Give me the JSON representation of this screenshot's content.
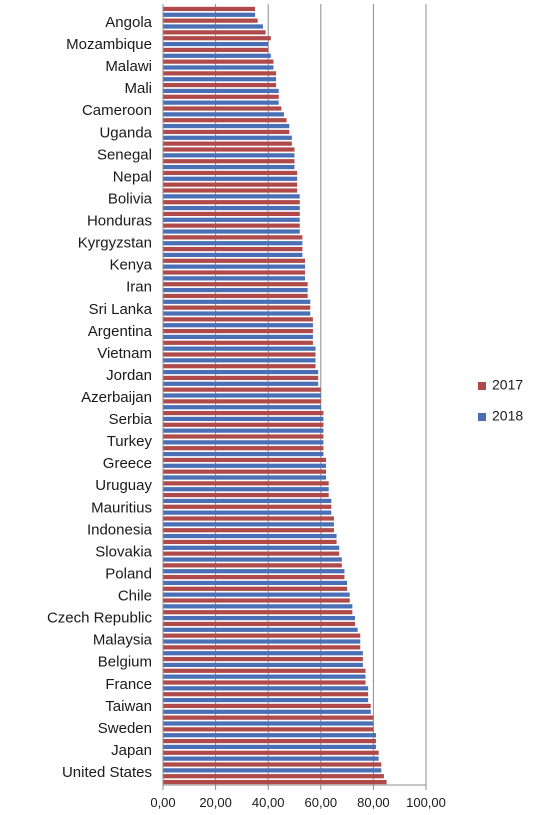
{
  "chart_data": {
    "type": "bar",
    "orientation": "horizontal",
    "xlim": [
      0,
      100
    ],
    "x_ticks": [
      "0,00",
      "20,00",
      "40,00",
      "60,00",
      "80,00",
      "100,00"
    ],
    "grid": true,
    "legend_position": "right",
    "series": [
      {
        "name": "2017",
        "color": "#b04a4a"
      },
      {
        "name": "2018",
        "color": "#4a6fb5"
      }
    ],
    "labeled_categories": [
      "Angola",
      "Mozambique",
      "Malawi",
      "Mali",
      "Cameroon",
      "Uganda",
      "Senegal",
      "Nepal",
      "Bolivia",
      "Honduras",
      "Kyrgyzstan",
      "Kenya",
      "Iran",
      "Sri Lanka",
      "Argentina",
      "Vietnam",
      "Jordan",
      "Azerbaijan",
      "Serbia",
      "Turkey",
      "Greece",
      "Uruguay",
      "Mauritius",
      "Indonesia",
      "Slovakia",
      "Poland",
      "Chile",
      "Czech Republic",
      "Malaysia",
      "Belgium",
      "France",
      "Taiwan",
      "Sweden",
      "Japan",
      "United States"
    ],
    "values": [
      35,
      35,
      36,
      38,
      39,
      41,
      40,
      40,
      41,
      42,
      42,
      43,
      43,
      43,
      44,
      44,
      44,
      45,
      46,
      47,
      48,
      48,
      49,
      49,
      50,
      50,
      50,
      50,
      51,
      51,
      51,
      51,
      52,
      52,
      52,
      52,
      52,
      52,
      52,
      53,
      53,
      53,
      53,
      54,
      54,
      54,
      54,
      55,
      55,
      55,
      56,
      56,
      56,
      57,
      57,
      57,
      57,
      57,
      58,
      58,
      58,
      58,
      59,
      59,
      59,
      60,
      60,
      60,
      60,
      61,
      61,
      61,
      61,
      61,
      61,
      61,
      61,
      62,
      62,
      62,
      62,
      63,
      63,
      63,
      64,
      64,
      64,
      65,
      65,
      65,
      66,
      66,
      67,
      67,
      68,
      68,
      69,
      69,
      70,
      70,
      71,
      71,
      72,
      72,
      73,
      73,
      74,
      75,
      75,
      75,
      76,
      76,
      76,
      77,
      77,
      77,
      78,
      78,
      78,
      79,
      79,
      80,
      80,
      80,
      81,
      81,
      81,
      82,
      82,
      83,
      83,
      84,
      85
    ],
    "series_index": [
      0,
      1,
      0,
      1,
      0,
      0,
      1,
      0,
      1,
      0,
      1,
      0,
      1,
      0,
      1,
      0,
      1,
      0,
      1,
      0,
      1,
      0,
      1,
      0,
      0,
      1,
      0,
      1,
      0,
      1,
      0,
      0,
      1,
      0,
      1,
      0,
      1,
      0,
      1,
      0,
      1,
      0,
      1,
      0,
      1,
      0,
      1,
      0,
      1,
      0,
      1,
      0,
      1,
      0,
      1,
      0,
      1,
      0,
      1,
      0,
      1,
      0,
      1,
      0,
      1,
      0,
      1,
      0,
      1,
      0,
      1,
      0,
      1,
      0,
      1,
      0,
      1,
      0,
      1,
      0,
      1,
      0,
      1,
      0,
      1,
      0,
      1,
      0,
      1,
      0,
      1,
      0,
      1,
      0,
      1,
      0,
      1,
      0,
      1,
      0,
      1,
      0,
      1,
      0,
      1,
      0,
      1,
      0,
      1,
      0,
      1,
      0,
      1,
      0,
      1,
      0,
      1,
      0,
      1,
      0,
      1,
      0,
      1,
      0,
      1,
      0,
      1,
      0,
      1,
      0,
      1,
      0,
      0
    ]
  }
}
